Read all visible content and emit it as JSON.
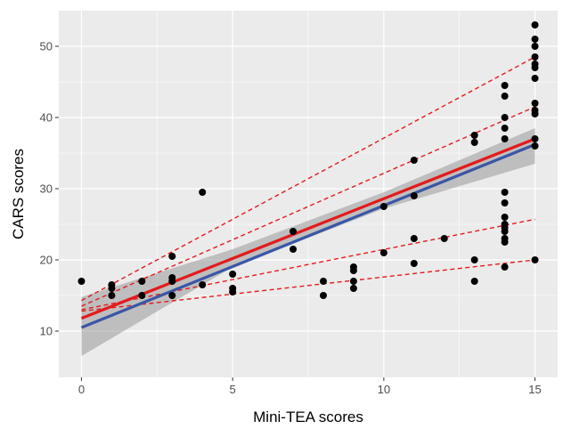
{
  "chart_data": {
    "type": "scatter",
    "xlabel": "Mini-TEA scores",
    "ylabel": "CARS scores",
    "xlim": [
      -0.75,
      15.75
    ],
    "ylim": [
      3.5,
      55.0
    ],
    "x_ticks": [
      0,
      5,
      10,
      15
    ],
    "y_ticks": [
      10,
      20,
      30,
      40,
      50
    ],
    "grid": true,
    "legend": "none",
    "points": [
      [
        0,
        17
      ],
      [
        1,
        16.5
      ],
      [
        1,
        15
      ],
      [
        1,
        16
      ],
      [
        2,
        17
      ],
      [
        2,
        15
      ],
      [
        3,
        20.5
      ],
      [
        3,
        17.5
      ],
      [
        3,
        17
      ],
      [
        3,
        15
      ],
      [
        4,
        29.5
      ],
      [
        4,
        16.5
      ],
      [
        5,
        18
      ],
      [
        5,
        16
      ],
      [
        5,
        15.5
      ],
      [
        7,
        24
      ],
      [
        7,
        21.5
      ],
      [
        8,
        17
      ],
      [
        8,
        15
      ],
      [
        9,
        19
      ],
      [
        9,
        18.5
      ],
      [
        9,
        17
      ],
      [
        9,
        16
      ],
      [
        10,
        27.5
      ],
      [
        10,
        21
      ],
      [
        11,
        34
      ],
      [
        11,
        29
      ],
      [
        11,
        23
      ],
      [
        11,
        19.5
      ],
      [
        12,
        23
      ],
      [
        13,
        37.5
      ],
      [
        13,
        36.5
      ],
      [
        13,
        20
      ],
      [
        13,
        17
      ],
      [
        14,
        44.5
      ],
      [
        14,
        43
      ],
      [
        14,
        40
      ],
      [
        14,
        38.5
      ],
      [
        14,
        37
      ],
      [
        14,
        29.5
      ],
      [
        14,
        28
      ],
      [
        14,
        26
      ],
      [
        14,
        25
      ],
      [
        14,
        24.5
      ],
      [
        14,
        24
      ],
      [
        14,
        23
      ],
      [
        14,
        22.5
      ],
      [
        14,
        19
      ],
      [
        15,
        53
      ],
      [
        15,
        51
      ],
      [
        15,
        50
      ],
      [
        15,
        48.5
      ],
      [
        15,
        47.5
      ],
      [
        15,
        47
      ],
      [
        15,
        45.5
      ],
      [
        15,
        42
      ],
      [
        15,
        41
      ],
      [
        15,
        40.5
      ],
      [
        15,
        37
      ],
      [
        15,
        36
      ],
      [
        15,
        20
      ]
    ],
    "series": [
      {
        "type": "line",
        "color": "#e41a1c",
        "style": "solid",
        "points": [
          [
            0,
            11.8
          ],
          [
            15,
            37.0
          ]
        ]
      },
      {
        "type": "line",
        "color": "#3a56a6",
        "style": "solid",
        "points": [
          [
            0,
            10.5
          ],
          [
            15,
            36.2
          ]
        ]
      },
      {
        "type": "line",
        "color": "#e41a1c",
        "style": "dashed",
        "points": [
          [
            0,
            14.3
          ],
          [
            15,
            48.5
          ]
        ]
      },
      {
        "type": "line",
        "color": "#e41a1c",
        "style": "dashed",
        "points": [
          [
            0,
            13.5
          ],
          [
            15,
            41.5
          ]
        ]
      },
      {
        "type": "line",
        "color": "#e41a1c",
        "style": "dashed",
        "points": [
          [
            0,
            13.0
          ],
          [
            15,
            25.7
          ]
        ]
      },
      {
        "type": "line",
        "color": "#e41a1c",
        "style": "dashed",
        "points": [
          [
            0,
            12.8
          ],
          [
            15,
            20.0
          ]
        ]
      },
      {
        "type": "band",
        "color": "#999999",
        "x": [
          0,
          5,
          10,
          15
        ],
        "lower": [
          6.5,
          19.0,
          27.2,
          33.5
        ],
        "upper": [
          14.8,
          21.5,
          29.5,
          38.5
        ]
      }
    ],
    "colors": {
      "panel": "#ebebeb",
      "grid": "#ffffff",
      "points": "#000000"
    }
  }
}
